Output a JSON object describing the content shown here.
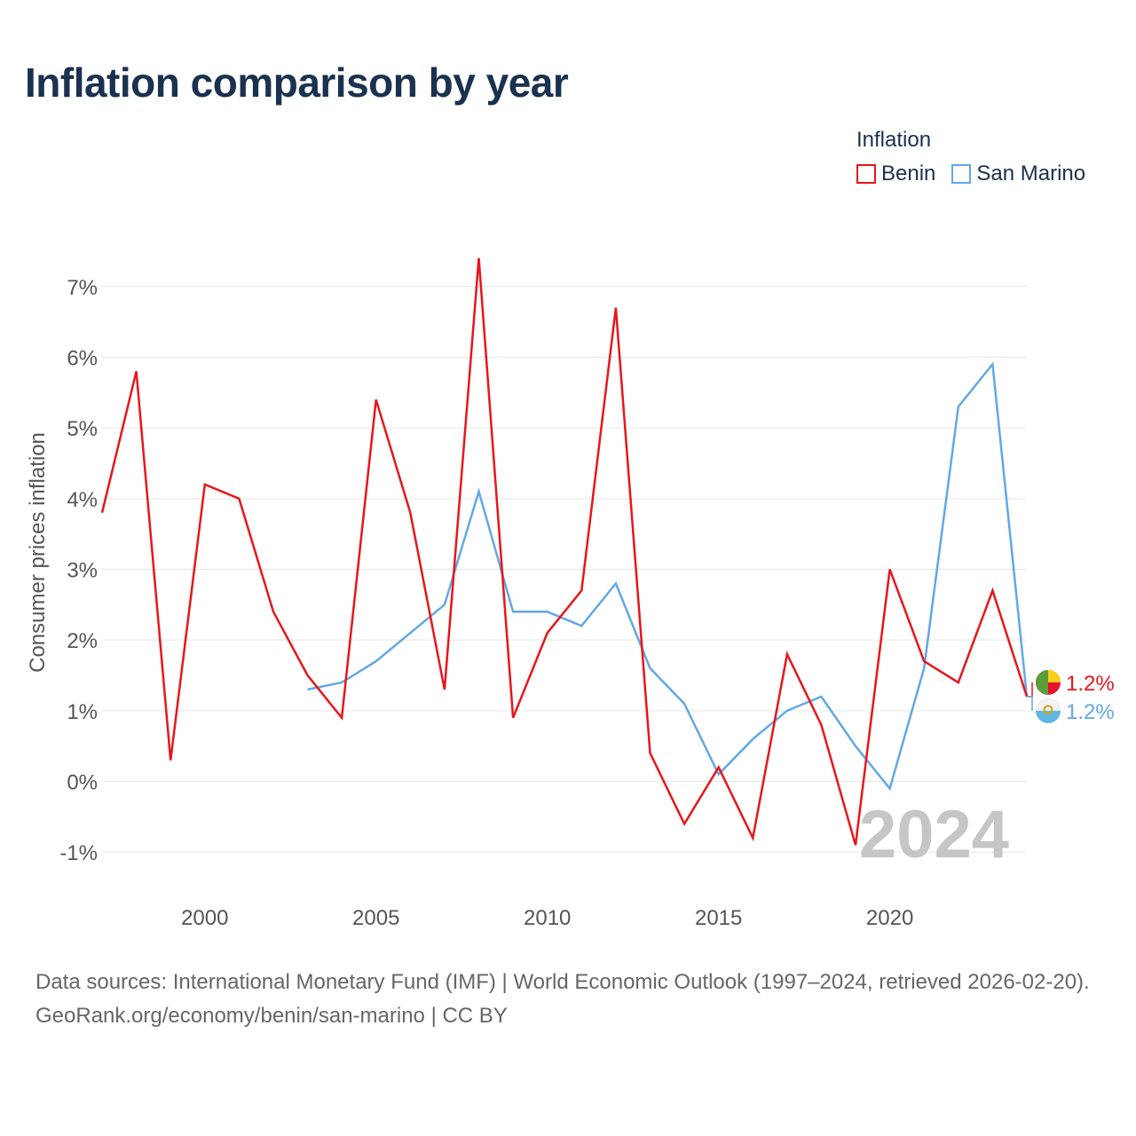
{
  "title": "Inflation comparison by year",
  "legend": {
    "title": "Inflation",
    "items": [
      {
        "label": "Benin",
        "color": "#e8161c"
      },
      {
        "label": "San Marino",
        "color": "#62a8e5"
      }
    ]
  },
  "footer": {
    "sources": "Data sources: International Monetary Fund (IMF) | World Economic Outlook (1997–2024, retrieved 2026-02-20).",
    "credit": "GeoRank.org/economy/benin/san-marino | CC BY"
  },
  "chart_data": {
    "type": "line",
    "title": "Inflation comparison by year",
    "xlabel": "",
    "ylabel": "Consumer prices inflation",
    "xlim": [
      1997,
      2024
    ],
    "ylim": [
      -1.5,
      7.6
    ],
    "y_ticks": [
      -1,
      0,
      1,
      2,
      3,
      4,
      5,
      6,
      7
    ],
    "y_tick_labels": [
      "-1%",
      "0%",
      "1%",
      "2%",
      "3%",
      "4%",
      "5%",
      "6%",
      "7%"
    ],
    "x_ticks": [
      2000,
      2005,
      2010,
      2015,
      2020
    ],
    "x_tick_labels": [
      "2000",
      "2005",
      "2010",
      "2015",
      "2020"
    ],
    "grid": true,
    "year_watermark": "2024",
    "series": [
      {
        "name": "Benin",
        "color": "#e8161c",
        "end_label": "1.2%",
        "x": [
          1997,
          1998,
          1999,
          2000,
          2001,
          2002,
          2003,
          2004,
          2005,
          2006,
          2007,
          2008,
          2009,
          2010,
          2011,
          2012,
          2013,
          2014,
          2015,
          2016,
          2017,
          2018,
          2019,
          2020,
          2021,
          2022,
          2023,
          2024
        ],
        "values": [
          3.8,
          5.8,
          0.3,
          4.2,
          4.0,
          2.4,
          1.5,
          0.9,
          5.4,
          3.8,
          1.3,
          7.4,
          0.9,
          2.1,
          2.7,
          6.7,
          0.4,
          -0.6,
          0.2,
          -0.8,
          1.8,
          0.8,
          -0.9,
          3.0,
          1.7,
          1.4,
          2.7,
          1.2
        ]
      },
      {
        "name": "San Marino",
        "color": "#62a8e5",
        "end_label": "1.2%",
        "x": [
          2003,
          2004,
          2005,
          2006,
          2007,
          2008,
          2009,
          2010,
          2011,
          2012,
          2013,
          2014,
          2015,
          2016,
          2017,
          2018,
          2019,
          2020,
          2021,
          2022,
          2023,
          2024
        ],
        "values": [
          1.3,
          1.4,
          1.7,
          2.1,
          2.5,
          4.1,
          2.4,
          2.4,
          2.2,
          2.8,
          1.6,
          1.1,
          0.1,
          0.6,
          1.0,
          1.2,
          0.5,
          -0.1,
          1.6,
          5.3,
          5.9,
          1.2
        ]
      }
    ]
  }
}
